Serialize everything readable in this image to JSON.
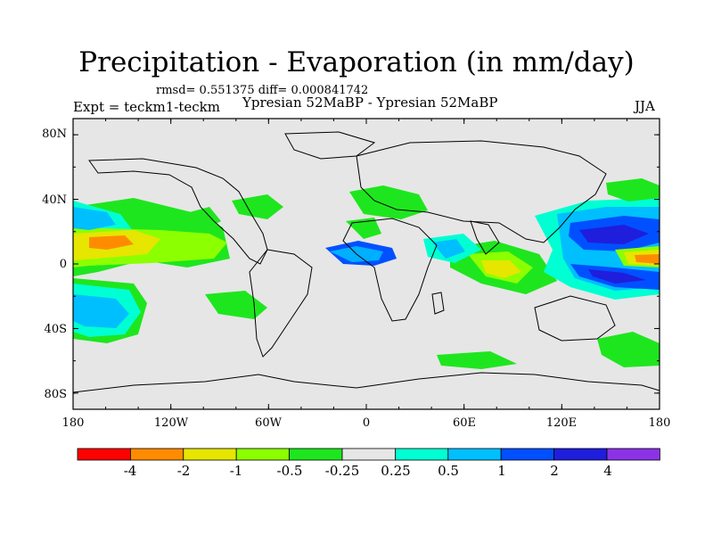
{
  "title": "Precipitation - Evaporation (in mm/day)",
  "stats": "rmsd= 0.551375 diff= 0.000841742",
  "expt": "Expt = teckm1-teckm",
  "subtitle": "Ypresian  52MaBP - Ypresian  52MaBP",
  "season": "JJA",
  "lat_labels": [
    "80N",
    "40N",
    "0",
    "40S",
    "80S"
  ],
  "lon_labels": [
    "180",
    "120W",
    "60W",
    "0",
    "60E",
    "120E",
    "180"
  ],
  "colorbar": {
    "colors": [
      "#ff0000",
      "#ff8c00",
      "#e6e600",
      "#8cff00",
      "#1ee61e",
      "#e6e6e6",
      "#00ffd2",
      "#00bfff",
      "#0050ff",
      "#1e1edc",
      "#8c32e6"
    ],
    "labels": [
      "-4",
      "-2",
      "-1",
      "-0.5",
      "-0.25",
      "0.25",
      "0.5",
      "1",
      "2",
      "4"
    ]
  },
  "colors": {
    "ocean_bg": "#e6e6e6",
    "coast": "#000000"
  }
}
